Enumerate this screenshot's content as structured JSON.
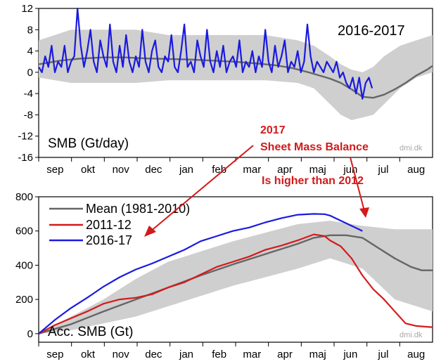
{
  "chart_data": [
    {
      "type": "line",
      "panel": "top",
      "title": "2016-2017",
      "ylabel": "SMB (Gt/day)",
      "credit": "dmi.dk",
      "ylim": [
        -16,
        12
      ],
      "yticks": [
        "12",
        "8",
        "4",
        "0",
        "-4",
        "-8",
        "-12",
        "-16"
      ],
      "months": [
        "sep",
        "okt",
        "nov",
        "dec",
        "jan",
        "feb",
        "mar",
        "apr",
        "maj",
        "jun",
        "jul",
        "aug"
      ],
      "x_unit": "day of season (starting 1 Sep)",
      "band": {
        "x": [
          0,
          30,
          60,
          90,
          120,
          150,
          180,
          210,
          240,
          255,
          270,
          280,
          290,
          300,
          310,
          320,
          335,
          350,
          365
        ],
        "lower": [
          -1,
          -2,
          -2,
          -2,
          -1.5,
          -1.5,
          -1.5,
          -1.5,
          -2,
          -3,
          -6,
          -8,
          -9,
          -8.5,
          -8,
          -6,
          -3,
          -1,
          0
        ],
        "upper": [
          6,
          8,
          8,
          8,
          7,
          7,
          7,
          7,
          6,
          5,
          3,
          1.5,
          0.5,
          0,
          1,
          3,
          5,
          6,
          7
        ]
      },
      "series": [
        {
          "color": "#666666",
          "x": [
            0,
            20,
            40,
            60,
            80,
            100,
            120,
            140,
            160,
            180,
            200,
            220,
            235,
            250,
            260,
            270,
            280,
            290,
            300,
            310,
            320,
            330,
            340,
            350,
            360,
            365
          ],
          "y": [
            1.5,
            2.2,
            2.6,
            2.8,
            2.8,
            2.6,
            2.5,
            2.4,
            2.2,
            2.0,
            1.7,
            1.3,
            0.8,
            0.0,
            -0.6,
            -1.2,
            -2.0,
            -3.2,
            -4.6,
            -4.8,
            -4.2,
            -3.2,
            -2.0,
            -0.6,
            0.5,
            1.2
          ]
        },
        {
          "color": "#1a1ae0",
          "x": [
            0,
            3,
            6,
            9,
            12,
            15,
            18,
            21,
            24,
            27,
            30,
            33,
            36,
            39,
            42,
            45,
            48,
            51,
            54,
            57,
            60,
            63,
            66,
            69,
            72,
            75,
            78,
            81,
            84,
            87,
            90,
            93,
            96,
            99,
            102,
            105,
            108,
            111,
            114,
            117,
            120,
            123,
            126,
            129,
            132,
            135,
            138,
            141,
            144,
            147,
            150,
            153,
            156,
            159,
            162,
            165,
            168,
            171,
            174,
            177,
            180,
            183,
            186,
            189,
            192,
            195,
            198,
            201,
            204,
            207,
            210,
            213,
            216,
            219,
            222,
            225,
            228,
            231,
            234,
            237,
            240,
            243,
            246,
            249,
            252,
            255,
            258,
            261,
            264,
            267,
            270,
            273,
            276,
            279,
            282,
            285,
            288,
            291,
            294,
            297,
            300,
            303,
            306,
            309
          ],
          "y": [
            1,
            0,
            3,
            1,
            5,
            0,
            2,
            1,
            5,
            0,
            2,
            3,
            12,
            5,
            1,
            4,
            8,
            2,
            0,
            6,
            3,
            1,
            9,
            2,
            0,
            5,
            1,
            7,
            2,
            0,
            3,
            1,
            8,
            2,
            0,
            4,
            6,
            1,
            0,
            3,
            2,
            7,
            1,
            0,
            4,
            9,
            1,
            2,
            0,
            6,
            3,
            1,
            8,
            2,
            0,
            4,
            1,
            5,
            0,
            2,
            3,
            1,
            6,
            0,
            2,
            1,
            4,
            0,
            3,
            1,
            8,
            2,
            0,
            5,
            1,
            3,
            6,
            0,
            2,
            1,
            4,
            0,
            2,
            9,
            3,
            0,
            2,
            1,
            0,
            2,
            1,
            0,
            2,
            -1,
            0,
            -2,
            -3,
            -1,
            -4,
            -1,
            -5,
            -2,
            -1,
            -3
          ]
        }
      ],
      "axis_ranges": {
        "x": [
          0,
          365
        ],
        "y": [
          -16,
          12
        ]
      }
    },
    {
      "type": "line",
      "panel": "bottom",
      "ylabel": "Acc. SMB (Gt)",
      "credit": "dmi.dk",
      "ylim": [
        -50,
        800
      ],
      "yticks": [
        "800",
        "600",
        "400",
        "200",
        "0"
      ],
      "months": [
        "sep",
        "okt",
        "nov",
        "dec",
        "jan",
        "feb",
        "mar",
        "apr",
        "maj",
        "jun",
        "jul",
        "aug"
      ],
      "x_unit": "day of season (starting 1 Sep)",
      "legend": [
        {
          "label": "Mean (1981-2010)",
          "color": "#666666"
        },
        {
          "label": "2011-12",
          "color": "#d51a1a"
        },
        {
          "label": "2016-17",
          "color": "#1a1ae0"
        }
      ],
      "band": {
        "x": [
          0,
          30,
          60,
          90,
          120,
          150,
          180,
          210,
          240,
          270,
          300,
          330,
          365
        ],
        "lower": [
          0,
          20,
          60,
          100,
          160,
          220,
          280,
          330,
          380,
          440,
          380,
          200,
          130
        ],
        "upper": [
          0,
          100,
          200,
          320,
          420,
          480,
          540,
          590,
          640,
          660,
          630,
          610,
          610
        ]
      },
      "series": [
        {
          "name": "Mean (1981-2010)",
          "color": "#666666",
          "x": [
            0,
            30,
            60,
            90,
            120,
            150,
            180,
            210,
            240,
            255,
            270,
            285,
            300,
            315,
            330,
            345,
            355,
            365
          ],
          "y": [
            0,
            55,
            130,
            200,
            270,
            340,
            405,
            465,
            525,
            560,
            575,
            575,
            560,
            500,
            440,
            390,
            370,
            370
          ]
        },
        {
          "name": "2011-12",
          "color": "#d51a1a",
          "x": [
            0,
            15,
            30,
            45,
            60,
            75,
            90,
            105,
            120,
            135,
            150,
            165,
            180,
            195,
            210,
            225,
            240,
            255,
            265,
            270,
            280,
            290,
            300,
            310,
            320,
            330,
            340,
            350,
            360,
            365
          ],
          "y": [
            0,
            50,
            90,
            130,
            175,
            200,
            210,
            230,
            270,
            300,
            345,
            390,
            420,
            450,
            490,
            515,
            545,
            580,
            570,
            545,
            510,
            440,
            340,
            260,
            200,
            130,
            60,
            45,
            40,
            38
          ]
        },
        {
          "name": "2016-17",
          "color": "#1a1ae0",
          "x": [
            0,
            15,
            30,
            45,
            60,
            75,
            90,
            105,
            120,
            135,
            150,
            165,
            180,
            195,
            210,
            225,
            240,
            255,
            265,
            270,
            280,
            290,
            300
          ],
          "y": [
            0,
            80,
            150,
            210,
            275,
            330,
            375,
            410,
            450,
            490,
            540,
            570,
            600,
            620,
            650,
            675,
            695,
            700,
            698,
            690,
            660,
            630,
            600
          ]
        }
      ],
      "axis_ranges": {
        "x": [
          0,
          365
        ],
        "y": [
          -50,
          800
        ]
      }
    }
  ],
  "annotation": {
    "line1": "2017",
    "line2": "Sheet Mass Balance",
    "line3": "Is higher than 2012",
    "color": "#d21a1a"
  }
}
